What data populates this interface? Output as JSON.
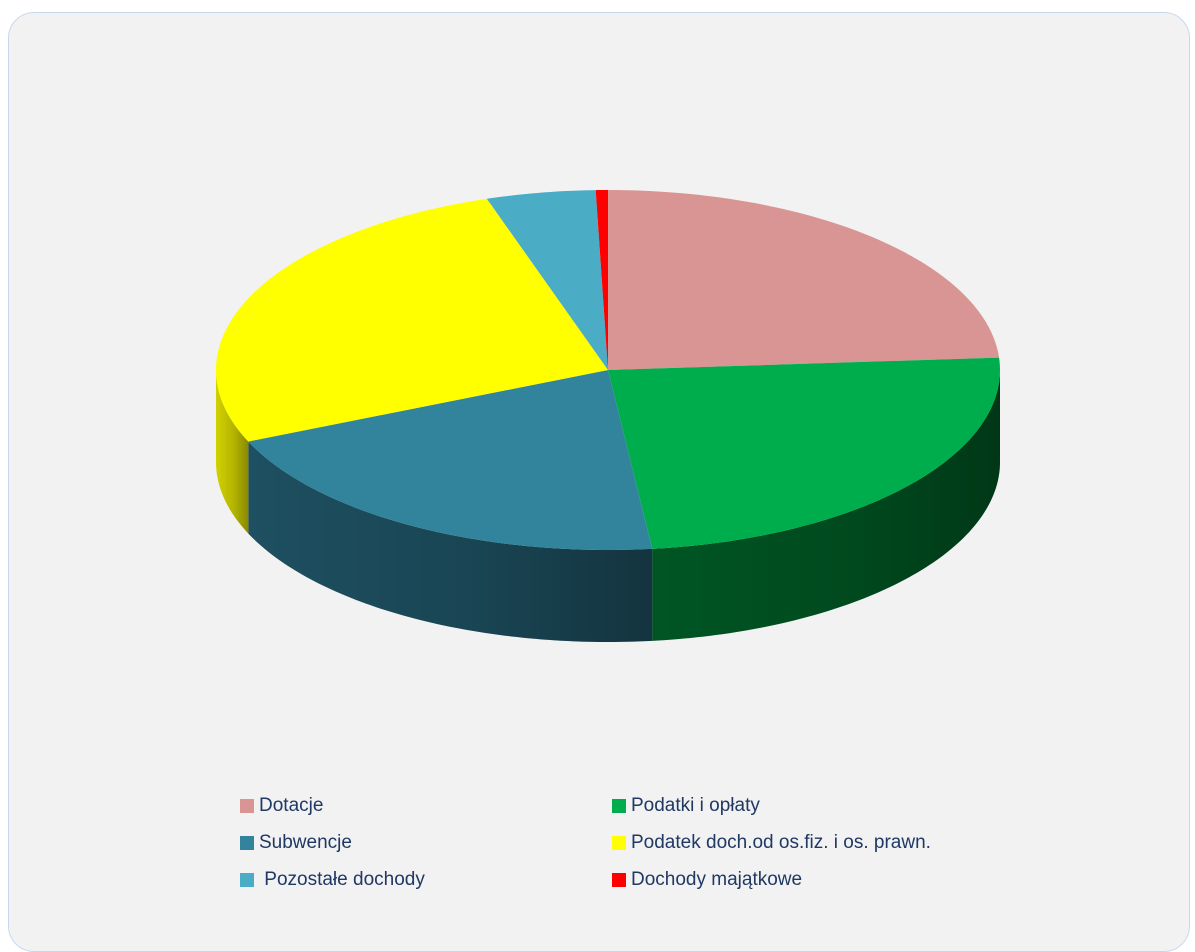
{
  "chart_data": {
    "type": "pie",
    "style": "3d",
    "title": "",
    "legend_position": "bottom",
    "slices": [
      {
        "label": "Dotacje",
        "value": 23.9,
        "color": "#d99594",
        "side_color": "#a86e6d"
      },
      {
        "label": "Podatki i opłaty",
        "value": 24.3,
        "color": "#00ad4d",
        "side_color": "#005a25"
      },
      {
        "label": "Subwencje",
        "value": 20.3,
        "color": "#31849b",
        "side_color": "#1f5466"
      },
      {
        "label": "Podatek doch.od os.fiz. i os. prawn.",
        "value": 26.5,
        "color": "#ffff00",
        "side_color": "#dcdc00"
      },
      {
        "label": "Pozostałe dochody",
        "value": 4.5,
        "color": "#4bacc6",
        "side_color": "#2f7d92"
      },
      {
        "label": "Dochody majątkowe",
        "value": 0.5,
        "color": "#ff0000",
        "side_color": "#b80000"
      }
    ],
    "legend_labels": [
      "Dotacje",
      "Podatki i opłaty",
      "Subwencje",
      "Podatek doch.od os.fiz. i os. prawn.",
      " Pozostałe dochody",
      "Dochody majątkowe"
    ]
  }
}
